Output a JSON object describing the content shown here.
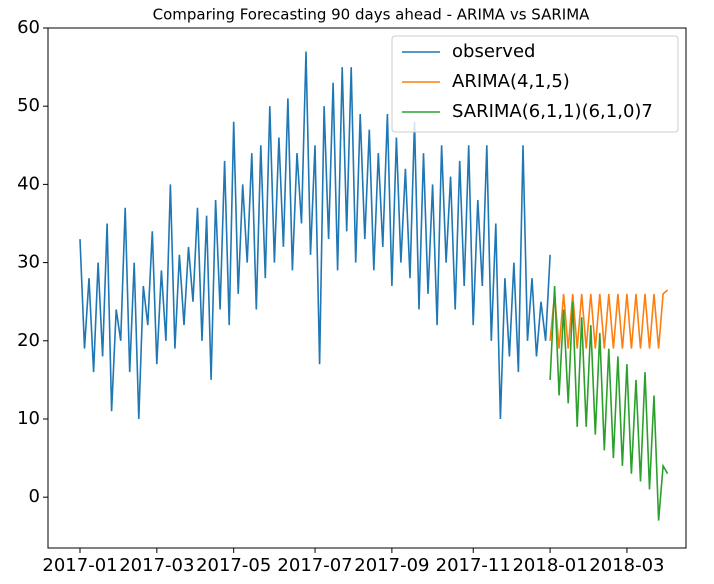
{
  "chart_data": {
    "type": "line",
    "title": "Comparing Forecasting 90 days ahead - ARIMA vs SARIMA",
    "categories": [
      "2017-01",
      null,
      null,
      null,
      null,
      null,
      null,
      null,
      null,
      null,
      null,
      null,
      null,
      null,
      null,
      null,
      null,
      "2017-03",
      null,
      null,
      null,
      null,
      null,
      null,
      null,
      null,
      null,
      null,
      null,
      null,
      null,
      null,
      null,
      null,
      "2017-05",
      null,
      null,
      null,
      null,
      null,
      null,
      null,
      null,
      null,
      null,
      null,
      null,
      null,
      null,
      null,
      null,
      null,
      "2017-07",
      null,
      null,
      null,
      null,
      null,
      null,
      null,
      null,
      null,
      null,
      null,
      null,
      null,
      null,
      null,
      null,
      "2017-09",
      null,
      null,
      null,
      null,
      null,
      null,
      null,
      null,
      null,
      null,
      null,
      null,
      null,
      null,
      null,
      null,
      null,
      "2017-11",
      null,
      null,
      null,
      null,
      null,
      null,
      null,
      null,
      null,
      null,
      null,
      null,
      null,
      null,
      null,
      null,
      "2018-01",
      null,
      null,
      null,
      null,
      null,
      null,
      null,
      null,
      null,
      null,
      null,
      null,
      null,
      null,
      null,
      null,
      "2018-03",
      null,
      null,
      null,
      null,
      null,
      null,
      null,
      null,
      null
    ],
    "series": [
      {
        "name": "observed",
        "color": "#1f77b4",
        "values": [
          33,
          19,
          28,
          16,
          30,
          18,
          35,
          11,
          24,
          20,
          37,
          16,
          30,
          10,
          27,
          22,
          34,
          17,
          29,
          20,
          40,
          19,
          31,
          22,
          32,
          25,
          37,
          20,
          36,
          15,
          38,
          24,
          43,
          22,
          48,
          26,
          40,
          30,
          44,
          24,
          45,
          28,
          50,
          30,
          46,
          32,
          51,
          29,
          44,
          35,
          57,
          31,
          45,
          17,
          50,
          33,
          53,
          29,
          55,
          34,
          55,
          30,
          49,
          33,
          47,
          29,
          44,
          32,
          49,
          27,
          46,
          30,
          42,
          28,
          48,
          24,
          44,
          26,
          40,
          22,
          45,
          30,
          41,
          24,
          43,
          27,
          45,
          22,
          38,
          27,
          45,
          20,
          35,
          10,
          28,
          18,
          30,
          16,
          45,
          20,
          28,
          18,
          25,
          20,
          31,
          null,
          null,
          null,
          null,
          null,
          null,
          null,
          null,
          null,
          null,
          null,
          null,
          null,
          null,
          null,
          null,
          null,
          null,
          null,
          null,
          null,
          null,
          null,
          null,
          null,
          null
        ]
      },
      {
        "name": "ARIMA(4,1,5)",
        "color": "#ff7f0e",
        "values": [
          null,
          null,
          null,
          null,
          null,
          null,
          null,
          null,
          null,
          null,
          null,
          null,
          null,
          null,
          null,
          null,
          null,
          null,
          null,
          null,
          null,
          null,
          null,
          null,
          null,
          null,
          null,
          null,
          null,
          null,
          null,
          null,
          null,
          null,
          null,
          null,
          null,
          null,
          null,
          null,
          null,
          null,
          null,
          null,
          null,
          null,
          null,
          null,
          null,
          null,
          null,
          null,
          null,
          null,
          null,
          null,
          null,
          null,
          null,
          null,
          null,
          null,
          null,
          null,
          null,
          null,
          null,
          null,
          null,
          null,
          null,
          null,
          null,
          null,
          null,
          null,
          null,
          null,
          null,
          null,
          null,
          null,
          null,
          null,
          null,
          null,
          null,
          null,
          null,
          null,
          null,
          null,
          null,
          null,
          null,
          null,
          null,
          null,
          null,
          null,
          null,
          null,
          null,
          null,
          20,
          26,
          19,
          26,
          19,
          26,
          19,
          26,
          19,
          26,
          19,
          26,
          19,
          26,
          19,
          26,
          19,
          26,
          19,
          26,
          19,
          26,
          19,
          26,
          19,
          26,
          26.5
        ]
      },
      {
        "name": "SARIMA(6,1,1)(6,1,0)7",
        "color": "#2ca02c",
        "values": [
          null,
          null,
          null,
          null,
          null,
          null,
          null,
          null,
          null,
          null,
          null,
          null,
          null,
          null,
          null,
          null,
          null,
          null,
          null,
          null,
          null,
          null,
          null,
          null,
          null,
          null,
          null,
          null,
          null,
          null,
          null,
          null,
          null,
          null,
          null,
          null,
          null,
          null,
          null,
          null,
          null,
          null,
          null,
          null,
          null,
          null,
          null,
          null,
          null,
          null,
          null,
          null,
          null,
          null,
          null,
          null,
          null,
          null,
          null,
          null,
          null,
          null,
          null,
          null,
          null,
          null,
          null,
          null,
          null,
          null,
          null,
          null,
          null,
          null,
          null,
          null,
          null,
          null,
          null,
          null,
          null,
          null,
          null,
          null,
          null,
          null,
          null,
          null,
          null,
          null,
          null,
          null,
          null,
          null,
          null,
          null,
          null,
          null,
          null,
          null,
          null,
          null,
          null,
          null,
          15,
          27,
          13,
          24,
          12,
          25,
          9,
          23,
          9,
          22,
          8,
          21,
          6,
          19,
          5,
          18,
          4,
          17,
          3,
          15,
          2,
          16,
          1,
          13,
          -3,
          4,
          3
        ]
      }
    ],
    "ylim": [
      -6.5,
      60
    ],
    "yticks": [
      0,
      10,
      20,
      30,
      40,
      50,
      60
    ],
    "grid": false,
    "legend": "upper right"
  }
}
